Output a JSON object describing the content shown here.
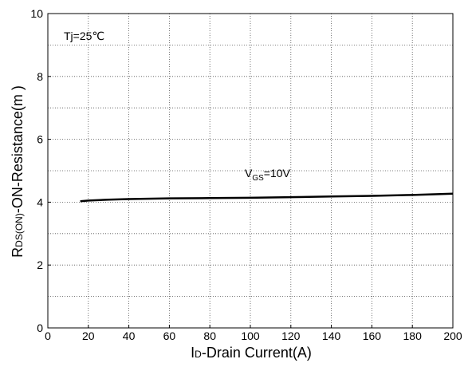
{
  "chart_data": {
    "type": "line",
    "xlabel_main": "I",
    "xlabel_sub": "D",
    "xlabel_rest": "-Drain Current(A)",
    "ylabel_main": "R",
    "ylabel_sub": "DS(ON)",
    "ylabel_rest": "-ON-Resistance(m   )",
    "xlim": [
      0,
      200
    ],
    "ylim": [
      0,
      10
    ],
    "x_ticks": [
      0,
      20,
      40,
      60,
      80,
      100,
      120,
      140,
      160,
      180,
      200
    ],
    "y_ticks": [
      0,
      2,
      4,
      6,
      8,
      10
    ],
    "grid": true,
    "annotations": {
      "temp": "Tj=25℃",
      "vgs_main": "V",
      "vgs_sub": "GS",
      "vgs_rest": "=10V"
    },
    "series": [
      {
        "x": [
          16,
          20,
          30,
          40,
          60,
          80,
          100,
          120,
          140,
          160,
          180,
          200
        ],
        "y": [
          4.03,
          4.05,
          4.08,
          4.1,
          4.12,
          4.13,
          4.14,
          4.16,
          4.18,
          4.2,
          4.23,
          4.27
        ]
      }
    ]
  }
}
